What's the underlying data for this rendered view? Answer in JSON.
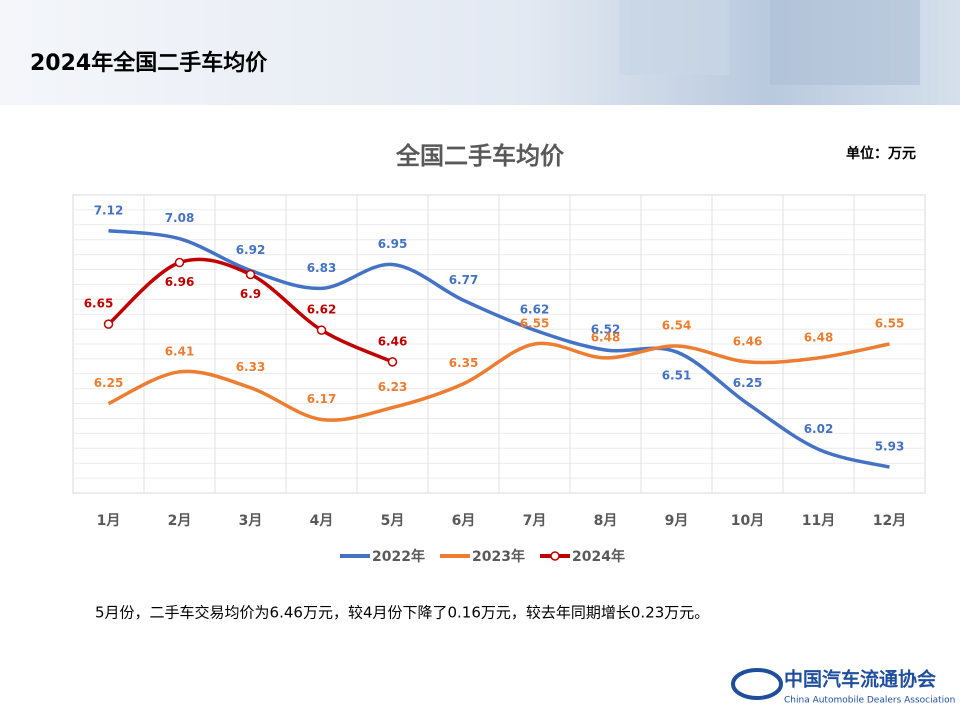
{
  "header": {
    "title": "2024年全国二手车均价"
  },
  "chart_data": {
    "type": "line",
    "title": "全国二手车均价",
    "unit": "单位：万元",
    "categories": [
      "1月",
      "2月",
      "3月",
      "4月",
      "5月",
      "6月",
      "7月",
      "8月",
      "9月",
      "10月",
      "11月",
      "12月"
    ],
    "series": [
      {
        "name": "2022年",
        "color": "#4472c4",
        "values": [
          7.12,
          7.08,
          6.92,
          6.83,
          6.95,
          6.77,
          6.62,
          6.52,
          6.51,
          6.25,
          6.02,
          5.93
        ]
      },
      {
        "name": "2023年",
        "color": "#ed7d31",
        "values": [
          6.25,
          6.41,
          6.33,
          6.17,
          6.23,
          6.35,
          6.55,
          6.48,
          6.54,
          6.46,
          6.48,
          6.55
        ]
      },
      {
        "name": "2024年",
        "color": "#c00000",
        "values": [
          6.65,
          6.96,
          6.9,
          6.62,
          6.46,
          null,
          null,
          null,
          null,
          null,
          null,
          null
        ]
      }
    ],
    "ylim": [
      5.8,
      7.3
    ],
    "grid": true,
    "smooth": true,
    "legend": "bottom"
  },
  "caption": "5月份，二手车交易均价为6.46万元，较4月份下降了0.16万元，较去年同期增长0.23万元。",
  "logo": {
    "name": "中国汽车流通协会",
    "english": "China Automobile Dealers Association"
  }
}
